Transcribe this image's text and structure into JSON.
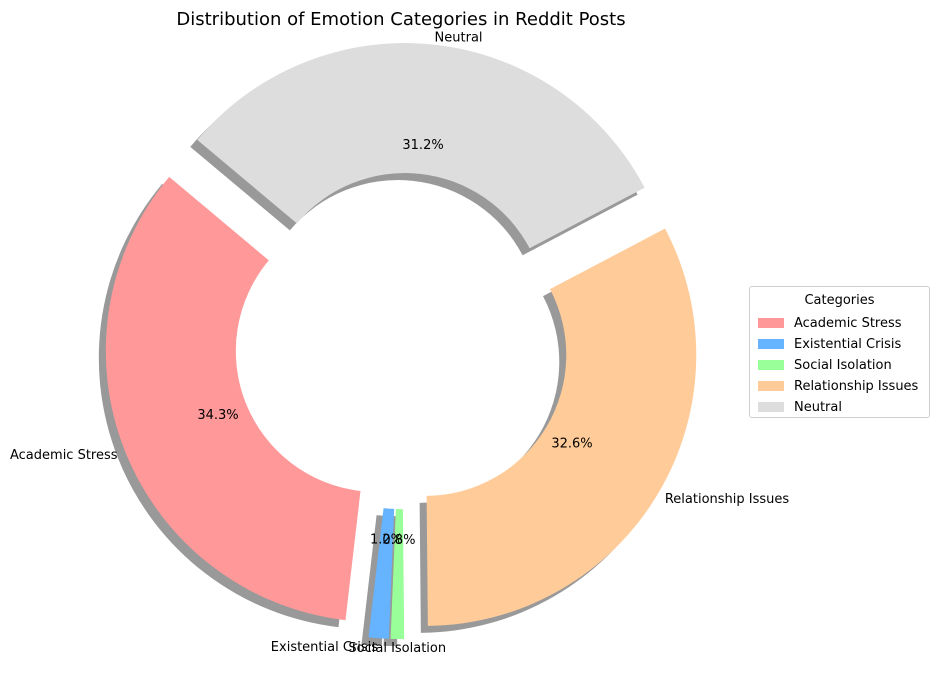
{
  "chart_data": {
    "type": "pie",
    "title": "Distribution of Emotion Categories in Reddit Posts",
    "donut": true,
    "shadow": true,
    "start_angle_deg": 140,
    "legend_title": "Categories",
    "legend_position": "center-right",
    "slices": [
      {
        "label": "Academic Stress",
        "percent": 34.3,
        "pct_label": "34.3%",
        "color": "#ff9999"
      },
      {
        "label": "Existential Crisis",
        "percent": 1.2,
        "pct_label": "1.2%",
        "color": "#66b3ff"
      },
      {
        "label": "Social Isolation",
        "percent": 0.8,
        "pct_label": "0.8%",
        "color": "#99ff99"
      },
      {
        "label": "Relationship Issues",
        "percent": 32.6,
        "pct_label": "32.6%",
        "color": "#ffcc99"
      },
      {
        "label": "Neutral",
        "percent": 31.2,
        "pct_label": "31.2%",
        "color": "#dddddd"
      }
    ]
  }
}
